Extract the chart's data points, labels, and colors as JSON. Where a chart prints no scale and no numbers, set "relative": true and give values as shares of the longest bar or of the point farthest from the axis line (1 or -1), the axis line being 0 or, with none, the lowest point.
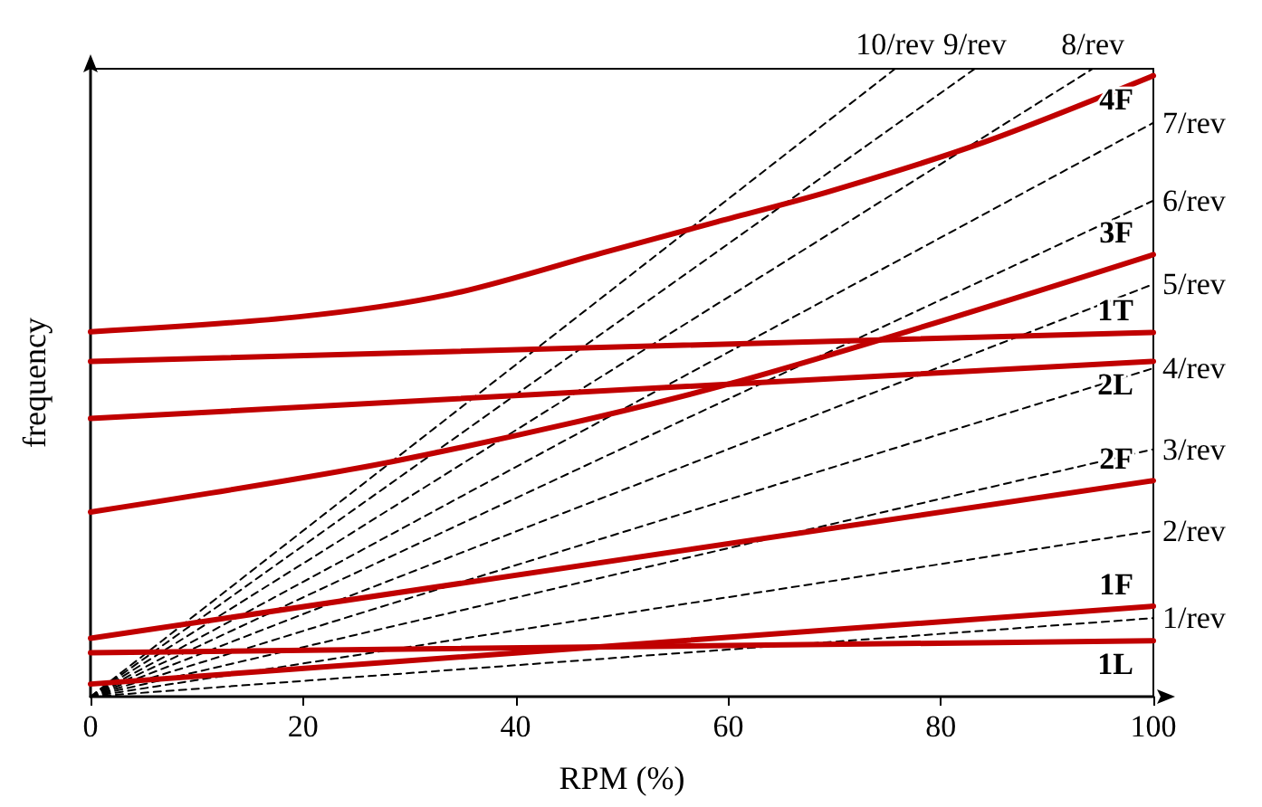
{
  "chart_data": {
    "type": "line",
    "xlabel": "RPM (%)",
    "ylabel": "frequency",
    "relative": true,
    "xlim": [
      0,
      100
    ],
    "xticks": [
      0,
      20,
      40,
      60,
      80,
      100
    ],
    "tick_labels": "x",
    "grid": false,
    "legend": false,
    "marker": "none",
    "series": [
      {
        "name": "1/rev",
        "color": "#000000",
        "line_style": "dashed",
        "x": [
          0,
          100
        ],
        "values": [
          0,
          0.125
        ]
      },
      {
        "name": "2/rev",
        "color": "#000000",
        "line_style": "dashed",
        "x": [
          0,
          100
        ],
        "values": [
          0,
          0.264
        ]
      },
      {
        "name": "3/rev",
        "color": "#000000",
        "line_style": "dashed",
        "x": [
          0,
          100
        ],
        "values": [
          0,
          0.394
        ]
      },
      {
        "name": "4/rev",
        "color": "#000000",
        "line_style": "dashed",
        "x": [
          0,
          100
        ],
        "values": [
          0,
          0.523
        ]
      },
      {
        "name": "5/rev",
        "color": "#000000",
        "line_style": "dashed",
        "x": [
          0,
          100
        ],
        "values": [
          0,
          0.657
        ]
      },
      {
        "name": "6/rev",
        "color": "#000000",
        "line_style": "dashed",
        "x": [
          0,
          100
        ],
        "values": [
          0,
          0.79
        ]
      },
      {
        "name": "7/rev",
        "color": "#000000",
        "line_style": "dashed",
        "x": [
          0,
          100
        ],
        "values": [
          0,
          0.914
        ]
      },
      {
        "name": "8/rev",
        "color": "#000000",
        "line_style": "dashed",
        "x": [
          0,
          94.3
        ],
        "values": [
          0,
          1
        ]
      },
      {
        "name": "9/rev",
        "color": "#000000",
        "line_style": "dashed",
        "x": [
          0,
          83.2
        ],
        "values": [
          0,
          1
        ]
      },
      {
        "name": "10/rev",
        "color": "#000000",
        "line_style": "dashed",
        "x": [
          0,
          75.7
        ],
        "values": [
          0,
          1
        ]
      },
      {
        "name": "1L",
        "color": "#c00000",
        "line_style": "solid",
        "x": [
          0,
          100
        ],
        "values": [
          0.07,
          0.089
        ]
      },
      {
        "name": "1F",
        "color": "#c00000",
        "line_style": "solid",
        "x": [
          0,
          100
        ],
        "values": [
          0.02,
          0.144
        ]
      },
      {
        "name": "2F",
        "color": "#c00000",
        "line_style": "solid",
        "x": [
          0,
          100
        ],
        "values": [
          0.093,
          0.344
        ]
      },
      {
        "name": "2L",
        "color": "#c00000",
        "line_style": "solid",
        "x": [
          0,
          100
        ],
        "values": [
          0.443,
          0.534
        ]
      },
      {
        "name": "1T",
        "color": "#c00000",
        "line_style": "solid",
        "x": [
          0,
          100
        ],
        "values": [
          0.534,
          0.58
        ]
      },
      {
        "name": "3F",
        "color": "#c00000",
        "line_style": "solid",
        "x": [
          0,
          28.9,
          60.3,
          100
        ],
        "values": [
          0.294,
          0.376,
          0.499,
          0.704
        ]
      },
      {
        "name": "4F",
        "color": "#c00000",
        "line_style": "solid",
        "x": [
          0,
          19.6,
          33.9,
          48.2,
          58.9,
          69.6,
          83.9,
          100
        ],
        "values": [
          0.581,
          0.605,
          0.641,
          0.707,
          0.756,
          0.805,
          0.882,
          0.989
        ]
      }
    ]
  }
}
